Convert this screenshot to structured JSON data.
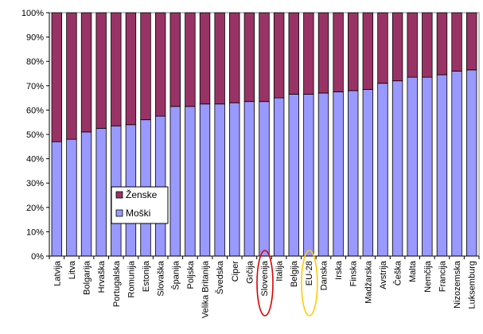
{
  "chart_data": {
    "type": "bar",
    "stacked": true,
    "categories": [
      "Latvija",
      "Litva",
      "Bolgarija",
      "Hrvaška",
      "Portugalska",
      "Romunija",
      "Estonija",
      "Slovaška",
      "Španija",
      "Poljska",
      "Velika Britanija",
      "Švedska",
      "Ciper",
      "Grčija",
      "Slovenija",
      "Italija",
      "Belgija",
      "EU-28",
      "Danska",
      "Irska",
      "Finska",
      "Madžarska",
      "Avstrija",
      "Češka",
      "Malta",
      "Nemčija",
      "Francija",
      "Nizozemska",
      "Luksemburg"
    ],
    "series": [
      {
        "name": "Moški",
        "color": "#9999ff",
        "values": [
          47,
          48,
          51,
          52.5,
          53.5,
          54,
          56,
          57.5,
          61.5,
          61.5,
          62.5,
          62.5,
          63,
          63.5,
          63.5,
          65,
          66.5,
          66.5,
          67,
          67.5,
          68,
          68.5,
          71,
          72,
          73.5,
          73.5,
          74.5,
          76,
          76.5
        ]
      },
      {
        "name": "Ženske",
        "color": "#993366",
        "values": [
          53,
          52,
          49,
          47.5,
          46.5,
          46,
          44,
          42.5,
          38.5,
          38.5,
          37.5,
          37.5,
          37,
          36.5,
          36.5,
          35,
          33.5,
          33.5,
          33,
          32.5,
          32,
          31.5,
          29,
          28,
          26.5,
          26.5,
          25.5,
          24,
          23.5
        ]
      }
    ],
    "y_ticks": [
      "0%",
      "10%",
      "20%",
      "30%",
      "40%",
      "50%",
      "60%",
      "70%",
      "80%",
      "90%",
      "100%"
    ],
    "ylim": [
      0,
      100
    ],
    "grid": false,
    "legend": {
      "placement": "left-center",
      "entries": [
        "Ženske",
        "Moški"
      ]
    },
    "highlights": [
      {
        "category": "Slovenija",
        "color": "#dd0000"
      },
      {
        "category": "EU-28",
        "color": "#ffcc00"
      }
    ],
    "title": "",
    "xlabel": "",
    "ylabel": ""
  }
}
